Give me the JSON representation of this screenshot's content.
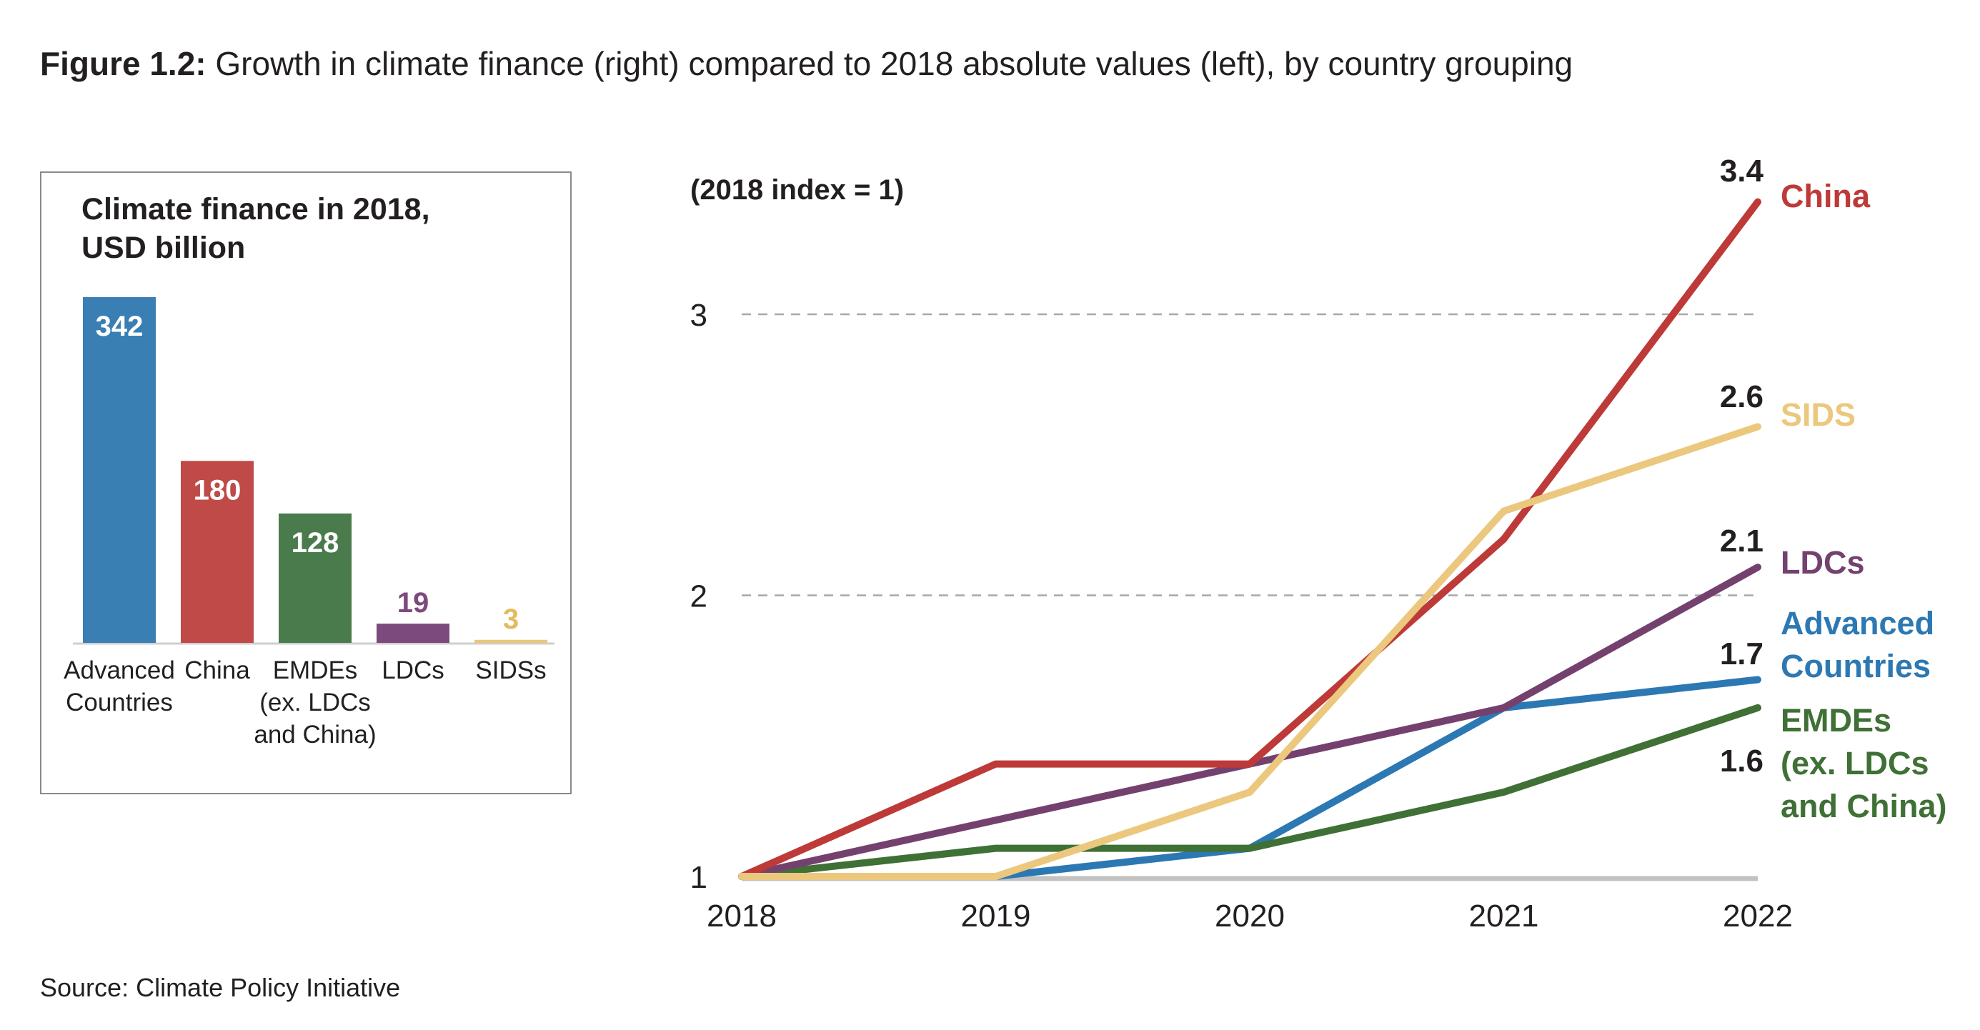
{
  "figure": {
    "label": "Figure 1.2:",
    "title": "Growth in climate finance (right) compared to 2018 absolute values (left), by country grouping",
    "source": "Source: Climate Policy Initiative"
  },
  "chart_data": [
    {
      "type": "bar",
      "title": "Climate finance in 2018, USD billion",
      "title_lines": [
        "Climate finance in 2018,",
        "USD billion"
      ],
      "categories": [
        [
          "Advanced",
          "Countries"
        ],
        [
          "China"
        ],
        [
          "EMDEs",
          "(ex. LDCs",
          "and China)"
        ],
        [
          "LDCs"
        ],
        [
          "SIDSs"
        ]
      ],
      "values": [
        342,
        180,
        128,
        19,
        3
      ],
      "labels": [
        "342",
        "180",
        "128",
        "19",
        "3"
      ],
      "colors": [
        "#3a7fb4",
        "#bf4a47",
        "#4a7b4c",
        "#7d4a7d",
        "#e8c878"
      ],
      "label_colors": [
        "#ffffff",
        "#ffffff",
        "#ffffff",
        "#7d4a7d",
        "#e3bb60"
      ],
      "ylim": [
        0,
        342
      ]
    },
    {
      "type": "line",
      "ylabel": "(2018 index = 1)",
      "x": [
        "2018",
        "2019",
        "2020",
        "2021",
        "2022"
      ],
      "ylim": [
        1,
        3.4
      ],
      "yticks": [
        1,
        2,
        3
      ],
      "grid": "dashed at 2 and 3",
      "series": [
        {
          "name": "Advanced Countries",
          "label_lines": [
            "Advanced",
            "Countries"
          ],
          "end_label": "1.7",
          "color": "#2c78b3",
          "values": [
            1.0,
            1.0,
            1.1,
            1.6,
            1.7
          ]
        },
        {
          "name": "EMDEs (ex. LDCs and China)",
          "label_lines": [
            "EMDEs",
            "(ex. LDCs",
            "and China)"
          ],
          "end_label": "1.6",
          "color": "#3f7035",
          "values": [
            1.0,
            1.1,
            1.1,
            1.3,
            1.6
          ]
        },
        {
          "name": "LDCs",
          "label_lines": [
            "LDCs"
          ],
          "end_label": "2.1",
          "color": "#74416f",
          "values": [
            1.0,
            1.2,
            1.4,
            1.6,
            2.1
          ]
        },
        {
          "name": "China",
          "label_lines": [
            "China"
          ],
          "end_label": "3.4",
          "color": "#bd3a38",
          "values": [
            1.0,
            1.4,
            1.4,
            2.2,
            3.4
          ]
        },
        {
          "name": "SIDS",
          "label_lines": [
            "SIDS"
          ],
          "end_label": "2.6",
          "color": "#ebc87d",
          "values": [
            1.0,
            1.0,
            1.3,
            2.3,
            2.6
          ]
        }
      ]
    }
  ]
}
